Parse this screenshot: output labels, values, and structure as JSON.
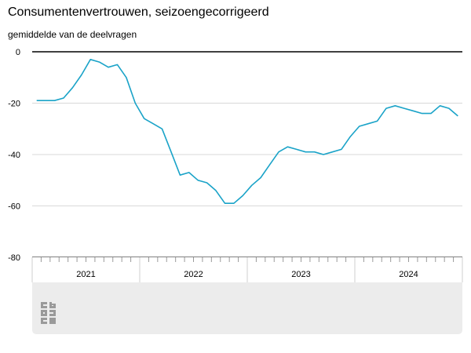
{
  "title": "Consumentenvertrouwen, seizoengecorrigeerd",
  "subtitle": "gemiddelde van de deelvragen",
  "chart_data": {
    "type": "line",
    "title": "Consumentenvertrouwen, seizoengecorrigeerd",
    "ylabel": "gemiddelde van de deelvragen",
    "ylim": [
      -80,
      0
    ],
    "yticks": [
      0,
      -20,
      -40,
      -60,
      -80
    ],
    "year_labels": [
      "2021",
      "2022",
      "2023",
      "2024"
    ],
    "x_start": "2021-01",
    "x_end": "2024-12",
    "grid": true,
    "line_color": "#1aa3c8",
    "series": [
      {
        "x": [
          "2021-01",
          "2021-02",
          "2021-03",
          "2021-04",
          "2021-05",
          "2021-06",
          "2021-07",
          "2021-08",
          "2021-09",
          "2021-10",
          "2021-11",
          "2021-12",
          "2022-01",
          "2022-02",
          "2022-03",
          "2022-04",
          "2022-05",
          "2022-06",
          "2022-07",
          "2022-08",
          "2022-09",
          "2022-10",
          "2022-11",
          "2022-12",
          "2023-01",
          "2023-02",
          "2023-03",
          "2023-04",
          "2023-05",
          "2023-06",
          "2023-07",
          "2023-08",
          "2023-09",
          "2023-10",
          "2023-11",
          "2023-12",
          "2024-01",
          "2024-02",
          "2024-03",
          "2024-04",
          "2024-05",
          "2024-06",
          "2024-07",
          "2024-08",
          "2024-09",
          "2024-10",
          "2024-11",
          "2024-12"
        ],
        "values": [
          -19,
          -19,
          -19,
          -18,
          -14,
          -9,
          -3,
          -4,
          -6,
          -5,
          -10,
          -20,
          -26,
          -28,
          -30,
          -39,
          -48,
          -47,
          -50,
          -51,
          -54,
          -59,
          -59,
          -56,
          -52,
          -49,
          -44,
          -39,
          -37,
          -38,
          -39,
          -39,
          -40,
          -39,
          -38,
          -33,
          -29,
          -28,
          -27,
          -22,
          -21,
          -22,
          -23,
          -24,
          -24,
          -21,
          -22,
          -25
        ]
      }
    ]
  }
}
